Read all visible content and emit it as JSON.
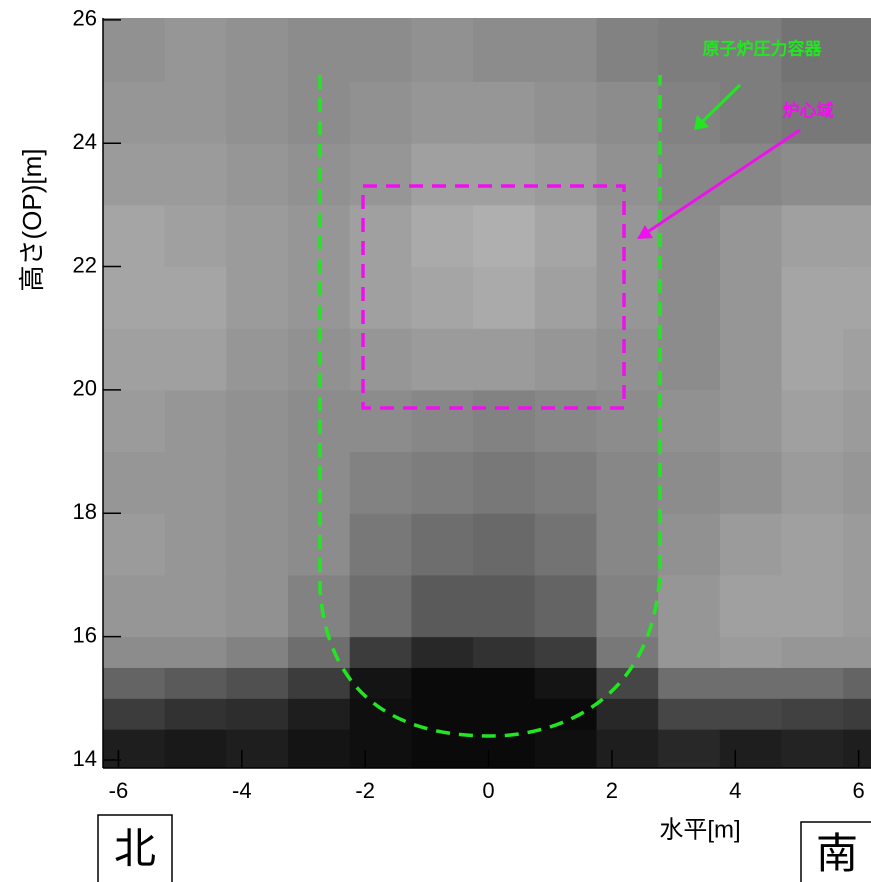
{
  "chart_data": {
    "type": "heatmap",
    "xlabel": "水平[m]",
    "ylabel": "高さ(OP)[m]",
    "xlim": [
      -6.25,
      6.2
    ],
    "ylim": [
      13.87,
      26.03
    ],
    "xticks": [
      -6,
      -4,
      -2,
      0,
      2,
      4,
      6
    ],
    "yticks": [
      14,
      16,
      18,
      20,
      22,
      24,
      26
    ],
    "colormap": "gray",
    "x_edges": [
      -6.25,
      -5.25,
      -4.25,
      -3.25,
      -2.25,
      -1.25,
      -0.25,
      0.75,
      1.75,
      2.75,
      3.75,
      4.75,
      5.75,
      6.2
    ],
    "y_edges": [
      13.87,
      14.5,
      15,
      15.5,
      16,
      17,
      18,
      19,
      20,
      21,
      22,
      23,
      24,
      25,
      26.03
    ],
    "z": [
      [
        30,
        25,
        30,
        20,
        15,
        10,
        10,
        15,
        30,
        40,
        30,
        35,
        30
      ],
      [
        60,
        50,
        45,
        30,
        15,
        10,
        10,
        10,
        40,
        70,
        70,
        65,
        60
      ],
      [
        100,
        90,
        80,
        60,
        20,
        10,
        10,
        20,
        70,
        110,
        110,
        110,
        100
      ],
      [
        140,
        140,
        130,
        110,
        60,
        40,
        50,
        60,
        120,
        150,
        155,
        150,
        150
      ],
      [
        150,
        150,
        145,
        130,
        110,
        90,
        90,
        100,
        130,
        150,
        160,
        160,
        155
      ],
      [
        155,
        150,
        145,
        140,
        120,
        110,
        105,
        115,
        135,
        145,
        155,
        160,
        155
      ],
      [
        150,
        150,
        145,
        140,
        130,
        125,
        120,
        125,
        135,
        140,
        145,
        155,
        150
      ],
      [
        155,
        150,
        145,
        140,
        140,
        135,
        130,
        135,
        140,
        145,
        150,
        160,
        155
      ],
      [
        160,
        160,
        150,
        145,
        150,
        155,
        155,
        150,
        145,
        140,
        150,
        165,
        160
      ],
      [
        165,
        165,
        155,
        150,
        160,
        165,
        170,
        160,
        150,
        140,
        150,
        165,
        165
      ],
      [
        165,
        160,
        155,
        150,
        160,
        170,
        175,
        165,
        150,
        140,
        150,
        160,
        160
      ],
      [
        155,
        155,
        150,
        145,
        150,
        160,
        160,
        155,
        145,
        135,
        135,
        140,
        140
      ],
      [
        150,
        150,
        145,
        140,
        145,
        150,
        150,
        145,
        140,
        130,
        125,
        120,
        120
      ],
      [
        145,
        150,
        145,
        140,
        140,
        145,
        140,
        140,
        130,
        125,
        125,
        115,
        115
      ]
    ],
    "annotations": [
      {
        "text": "原子炉圧力容器",
        "color": "#22e622"
      },
      {
        "text": "炉心域",
        "color": "#ee11ee"
      }
    ],
    "direction_labels": [
      "北",
      "南"
    ]
  }
}
